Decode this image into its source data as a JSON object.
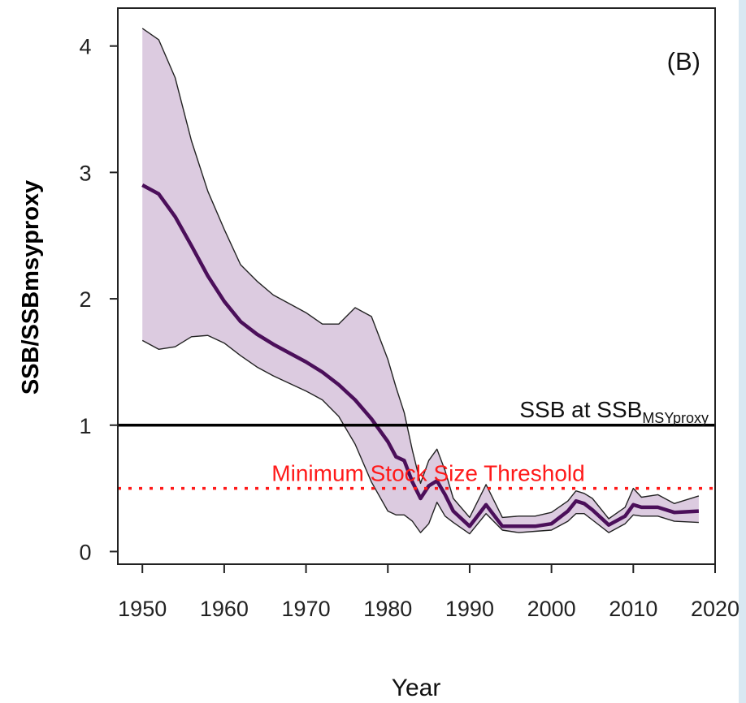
{
  "chart_data": {
    "type": "line",
    "panel_label": "(B)",
    "xlabel": "Year",
    "ylabel": "SSB/SSBmsyproxy",
    "xlim": [
      1947,
      2020
    ],
    "ylim": [
      -0.1,
      4.3
    ],
    "x_ticks": [
      1950,
      1960,
      1970,
      1980,
      1990,
      2000,
      2010,
      2020
    ],
    "y_ticks": [
      0,
      1,
      2,
      3,
      4
    ],
    "grid": false,
    "colors": {
      "median_line": "#4b0f5a",
      "band_fill": "#dccbe0",
      "band_edge": "#222222",
      "reference_line": "#000000",
      "threshold_line": "#ff1a1a"
    },
    "reference_lines": [
      {
        "text": "SSB at SSB",
        "subscript": "MSYproxy",
        "y": 1.0,
        "style": "solid",
        "color": "#000000"
      },
      {
        "text": "Minimum Stock Size Threshold",
        "y": 0.5,
        "style": "dotted",
        "color": "#ff1a1a"
      }
    ],
    "series": [
      {
        "x": [
          1950,
          1952,
          1954,
          1956,
          1958,
          1960,
          1962,
          1964,
          1966,
          1968,
          1970,
          1972,
          1974,
          1976,
          1978,
          1980,
          1981,
          1982,
          1983,
          1984,
          1985,
          1986,
          1987,
          1988,
          1990,
          1992,
          1994,
          1996,
          1998,
          2000,
          2002,
          2003,
          2004,
          2005,
          2007,
          2009,
          2010,
          2011,
          2013,
          2015,
          2018
        ],
        "values": [
          2.9,
          2.83,
          2.65,
          2.42,
          2.18,
          1.98,
          1.82,
          1.72,
          1.64,
          1.57,
          1.5,
          1.42,
          1.32,
          1.2,
          1.05,
          0.87,
          0.75,
          0.72,
          0.55,
          0.42,
          0.52,
          0.56,
          0.45,
          0.32,
          0.2,
          0.37,
          0.2,
          0.2,
          0.2,
          0.22,
          0.32,
          0.4,
          0.38,
          0.33,
          0.21,
          0.28,
          0.37,
          0.35,
          0.35,
          0.31,
          0.32
        ],
        "lower": [
          1.67,
          1.6,
          1.62,
          1.7,
          1.71,
          1.65,
          1.55,
          1.46,
          1.39,
          1.33,
          1.27,
          1.2,
          1.07,
          0.85,
          0.55,
          0.32,
          0.29,
          0.29,
          0.24,
          0.15,
          0.22,
          0.39,
          0.28,
          0.23,
          0.14,
          0.3,
          0.17,
          0.15,
          0.16,
          0.17,
          0.24,
          0.3,
          0.3,
          0.25,
          0.15,
          0.22,
          0.29,
          0.28,
          0.28,
          0.24,
          0.23
        ],
        "upper": [
          4.14,
          4.05,
          3.75,
          3.25,
          2.85,
          2.55,
          2.27,
          2.14,
          2.03,
          1.96,
          1.89,
          1.8,
          1.8,
          1.93,
          1.86,
          1.52,
          1.3,
          1.1,
          0.8,
          0.54,
          0.72,
          0.81,
          0.64,
          0.42,
          0.27,
          0.53,
          0.27,
          0.28,
          0.28,
          0.31,
          0.4,
          0.48,
          0.46,
          0.42,
          0.26,
          0.35,
          0.5,
          0.43,
          0.45,
          0.38,
          0.44
        ]
      }
    ]
  }
}
